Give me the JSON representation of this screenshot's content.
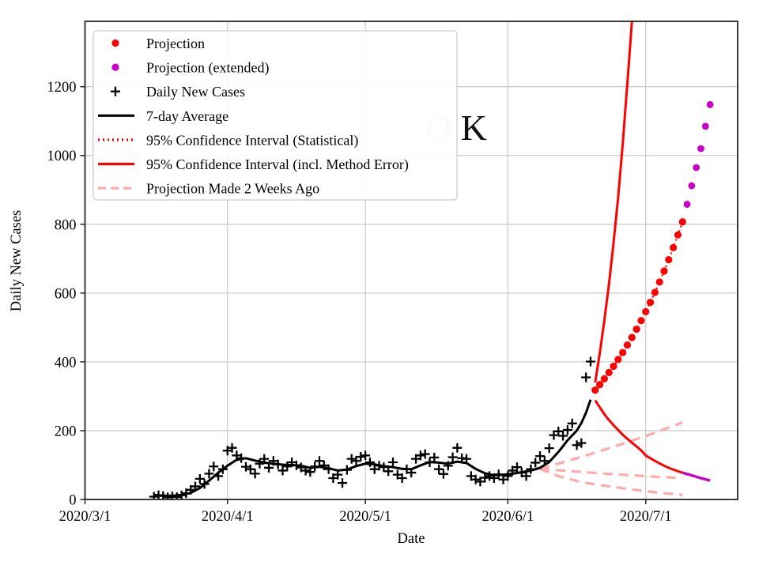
{
  "watermark": {
    "gray_text": "O",
    "black_text": "K"
  },
  "colors": {
    "red": "#ff0000",
    "magenta": "#c800c8",
    "pink": "#ffaaaa",
    "black": "#000000",
    "grid": "#cccccc",
    "spine": "#262626",
    "watermark_gray": "#d4d4d4",
    "watermark_black": "#111111"
  },
  "legend": {
    "items": [
      {
        "label": "Projection",
        "marker": "dot",
        "color": "#ff0000"
      },
      {
        "label": "Projection (extended)",
        "marker": "dot",
        "color": "#c800c8"
      },
      {
        "label": "Daily New Cases",
        "marker": "plus",
        "color": "#000000"
      },
      {
        "label": "7-day Average",
        "marker": "line",
        "color": "#000000"
      },
      {
        "label": "95% Confidence Interval (Statistical)",
        "marker": "dotted",
        "color": "#ff0000"
      },
      {
        "label": "95% Confidence Interval (incl. Method Error)",
        "marker": "line",
        "color": "#ff0000"
      },
      {
        "label": "Projection Made 2 Weeks Ago",
        "marker": "dashed",
        "color": "#ffaaaa"
      }
    ]
  },
  "chart_data": {
    "type": "line",
    "title": "",
    "xlabel": "Date",
    "ylabel": "Daily New Cases",
    "x_ticks": [
      {
        "label": "2020/3/1",
        "date": "3/1"
      },
      {
        "label": "2020/4/1",
        "date": "4/1"
      },
      {
        "label": "2020/5/1",
        "date": "5/1"
      },
      {
        "label": "2020/6/1",
        "date": "6/1"
      },
      {
        "label": "2020/7/1",
        "date": "7/1"
      }
    ],
    "y_ticks": [
      0,
      200,
      400,
      600,
      800,
      1000,
      1200
    ],
    "xlim": [
      "3/1",
      "7/21"
    ],
    "ylim": [
      0,
      1390
    ],
    "grid": true,
    "legend_position": "upper left",
    "series": {
      "daily_new_cases": {
        "label": "Daily New Cases",
        "marker": "plus",
        "color": "#000000",
        "points": [
          [
            "3/16",
            8
          ],
          [
            "3/17",
            12
          ],
          [
            "3/18",
            10
          ],
          [
            "3/19",
            6
          ],
          [
            "3/20",
            9
          ],
          [
            "3/21",
            7
          ],
          [
            "3/22",
            12
          ],
          [
            "3/23",
            18
          ],
          [
            "3/24",
            28
          ],
          [
            "3/25",
            38
          ],
          [
            "3/26",
            60
          ],
          [
            "3/27",
            45
          ],
          [
            "3/28",
            75
          ],
          [
            "3/29",
            96
          ],
          [
            "3/30",
            68
          ],
          [
            "3/31",
            88
          ],
          [
            "4/1",
            142
          ],
          [
            "4/2",
            150
          ],
          [
            "4/3",
            128
          ],
          [
            "4/4",
            120
          ],
          [
            "4/5",
            95
          ],
          [
            "4/6",
            88
          ],
          [
            "4/7",
            75
          ],
          [
            "4/8",
            104
          ],
          [
            "4/9",
            118
          ],
          [
            "4/10",
            92
          ],
          [
            "4/11",
            112
          ],
          [
            "4/12",
            102
          ],
          [
            "4/13",
            84
          ],
          [
            "4/14",
            96
          ],
          [
            "4/15",
            108
          ],
          [
            "4/16",
            99
          ],
          [
            "4/17",
            93
          ],
          [
            "4/18",
            84
          ],
          [
            "4/19",
            80
          ],
          [
            "4/20",
            96
          ],
          [
            "4/21",
            112
          ],
          [
            "4/22",
            99
          ],
          [
            "4/23",
            88
          ],
          [
            "4/24",
            62
          ],
          [
            "4/25",
            72
          ],
          [
            "4/26",
            48
          ],
          [
            "4/27",
            86
          ],
          [
            "4/28",
            118
          ],
          [
            "4/29",
            112
          ],
          [
            "4/30",
            124
          ],
          [
            "5/1",
            128
          ],
          [
            "5/2",
            108
          ],
          [
            "5/3",
            88
          ],
          [
            "5/4",
            98
          ],
          [
            "5/5",
            94
          ],
          [
            "5/6",
            82
          ],
          [
            "5/7",
            108
          ],
          [
            "5/8",
            72
          ],
          [
            "5/9",
            62
          ],
          [
            "5/10",
            88
          ],
          [
            "5/11",
            78
          ],
          [
            "5/12",
            118
          ],
          [
            "5/13",
            128
          ],
          [
            "5/14",
            132
          ],
          [
            "5/15",
            108
          ],
          [
            "5/16",
            122
          ],
          [
            "5/17",
            88
          ],
          [
            "5/18",
            74
          ],
          [
            "5/19",
            98
          ],
          [
            "5/20",
            123
          ],
          [
            "5/21",
            150
          ],
          [
            "5/22",
            120
          ],
          [
            "5/23",
            118
          ],
          [
            "5/24",
            68
          ],
          [
            "5/25",
            58
          ],
          [
            "5/26",
            52
          ],
          [
            "5/27",
            63
          ],
          [
            "5/28",
            68
          ],
          [
            "5/29",
            62
          ],
          [
            "5/30",
            73
          ],
          [
            "5/31",
            58
          ],
          [
            "6/1",
            68
          ],
          [
            "6/2",
            84
          ],
          [
            "6/3",
            94
          ],
          [
            "6/4",
            78
          ],
          [
            "6/5",
            68
          ],
          [
            "6/6",
            88
          ],
          [
            "6/7",
            107
          ],
          [
            "6/8",
            126
          ],
          [
            "6/9",
            112
          ],
          [
            "6/10",
            149
          ],
          [
            "6/11",
            187
          ],
          [
            "6/12",
            198
          ],
          [
            "6/13",
            185
          ],
          [
            "6/14",
            202
          ],
          [
            "6/15",
            221
          ],
          [
            "6/16",
            158
          ],
          [
            "6/17",
            164
          ],
          [
            "6/18",
            355
          ],
          [
            "6/19",
            401
          ]
        ]
      },
      "seven_day_average": {
        "label": "7-day Average",
        "style": "solid",
        "color": "#000000",
        "points": [
          [
            "3/16",
            13
          ],
          [
            "3/18",
            11
          ],
          [
            "3/20",
            11
          ],
          [
            "3/22",
            13
          ],
          [
            "3/24",
            19
          ],
          [
            "3/26",
            33
          ],
          [
            "3/28",
            55
          ],
          [
            "3/30",
            78
          ],
          [
            "4/1",
            98
          ],
          [
            "4/3",
            115
          ],
          [
            "4/5",
            120
          ],
          [
            "4/7",
            113
          ],
          [
            "4/9",
            107
          ],
          [
            "4/11",
            104
          ],
          [
            "4/13",
            101
          ],
          [
            "4/15",
            100
          ],
          [
            "4/17",
            98
          ],
          [
            "4/19",
            92
          ],
          [
            "4/21",
            95
          ],
          [
            "4/23",
            91
          ],
          [
            "4/25",
            84
          ],
          [
            "4/27",
            87
          ],
          [
            "4/29",
            97
          ],
          [
            "5/1",
            104
          ],
          [
            "5/3",
            102
          ],
          [
            "5/5",
            97
          ],
          [
            "5/7",
            94
          ],
          [
            "5/9",
            89
          ],
          [
            "5/11",
            88
          ],
          [
            "5/13",
            99
          ],
          [
            "5/15",
            109
          ],
          [
            "5/17",
            107
          ],
          [
            "5/19",
            104
          ],
          [
            "5/21",
            110
          ],
          [
            "5/23",
            106
          ],
          [
            "5/25",
            89
          ],
          [
            "5/27",
            76
          ],
          [
            "5/29",
            70
          ],
          [
            "5/31",
            72
          ],
          [
            "6/2",
            75
          ],
          [
            "6/4",
            79
          ],
          [
            "6/6",
            84
          ],
          [
            "6/8",
            92
          ],
          [
            "6/10",
            109
          ],
          [
            "6/12",
            138
          ],
          [
            "6/14",
            172
          ],
          [
            "6/16",
            200
          ],
          [
            "6/17",
            222
          ],
          [
            "6/18",
            252
          ],
          [
            "6/19",
            290
          ]
        ]
      },
      "projection": {
        "label": "Projection",
        "marker": "dot",
        "color": "#ff0000",
        "points": [
          [
            "6/20",
            318
          ],
          [
            "6/21",
            334
          ],
          [
            "6/22",
            351
          ],
          [
            "6/23",
            369
          ],
          [
            "6/24",
            387
          ],
          [
            "6/25",
            407
          ],
          [
            "6/26",
            427
          ],
          [
            "6/27",
            449
          ],
          [
            "6/28",
            471
          ],
          [
            "6/29",
            495
          ],
          [
            "6/30",
            520
          ],
          [
            "7/1",
            546
          ],
          [
            "7/2",
            573
          ],
          [
            "7/3",
            602
          ],
          [
            "7/4",
            632
          ],
          [
            "7/5",
            664
          ],
          [
            "7/6",
            697
          ],
          [
            "7/7",
            732
          ],
          [
            "7/8",
            769
          ],
          [
            "7/9",
            807
          ]
        ]
      },
      "projection_extended": {
        "label": "Projection (extended)",
        "marker": "dot",
        "color": "#c800c8",
        "points": [
          [
            "7/10",
            858
          ],
          [
            "7/11",
            912
          ],
          [
            "7/12",
            965
          ],
          [
            "7/13",
            1020
          ],
          [
            "7/14",
            1085
          ],
          [
            "7/15",
            1148
          ]
        ]
      },
      "ci_statistical": {
        "label": "95% Confidence Interval (Statistical)",
        "style": "dotted",
        "color": "#ff0000",
        "note": "coincident with projection curve, hidden behind dots",
        "points": [
          [
            "6/20",
            318
          ],
          [
            "6/21",
            334
          ],
          [
            "6/22",
            351
          ],
          [
            "6/23",
            369
          ],
          [
            "6/24",
            387
          ],
          [
            "6/25",
            407
          ],
          [
            "6/26",
            427
          ],
          [
            "6/27",
            449
          ],
          [
            "6/28",
            471
          ],
          [
            "6/29",
            495
          ],
          [
            "6/30",
            520
          ],
          [
            "7/1",
            546
          ],
          [
            "7/2",
            573
          ],
          [
            "7/3",
            602
          ],
          [
            "7/4",
            632
          ],
          [
            "7/5",
            664
          ],
          [
            "7/6",
            697
          ],
          [
            "7/7",
            732
          ],
          [
            "7/8",
            769
          ],
          [
            "7/9",
            807
          ]
        ]
      },
      "ci_method_upper": {
        "label": "95% Confidence Interval (incl. Method Error) - upper",
        "style": "solid",
        "color": "#ff0000",
        "points": [
          [
            "6/20",
            340
          ],
          [
            "6/21",
            425
          ],
          [
            "6/22",
            520
          ],
          [
            "6/23",
            625
          ],
          [
            "6/24",
            745
          ],
          [
            "6/25",
            880
          ],
          [
            "6/26",
            1035
          ],
          [
            "6/27",
            1210
          ],
          [
            "6/28",
            1390
          ]
        ]
      },
      "ci_method_lower": {
        "label": "95% Confidence Interval (incl. Method Error) - lower",
        "style": "solid",
        "color": "#ff0000",
        "points": [
          [
            "6/20",
            288
          ],
          [
            "6/21",
            268
          ],
          [
            "6/22",
            248
          ],
          [
            "6/23",
            231
          ],
          [
            "6/24",
            216
          ],
          [
            "6/25",
            202
          ],
          [
            "6/26",
            188
          ],
          [
            "6/27",
            176
          ],
          [
            "6/28",
            165
          ],
          [
            "6/29",
            154
          ],
          [
            "6/30",
            143
          ],
          [
            "7/1",
            128
          ],
          [
            "7/2",
            120
          ],
          [
            "7/3",
            112
          ],
          [
            "7/4",
            105
          ],
          [
            "7/5",
            98
          ],
          [
            "7/6",
            92
          ],
          [
            "7/7",
            87
          ],
          [
            "7/8",
            82
          ],
          [
            "7/9",
            78
          ]
        ]
      },
      "ci_method_lower_extended": {
        "label": "lower bound (extended)",
        "style": "solid",
        "color": "#c800c8",
        "points": [
          [
            "7/9",
            78
          ],
          [
            "7/11",
            70
          ],
          [
            "7/13",
            62
          ],
          [
            "7/15",
            55
          ]
        ]
      },
      "projection_2wk_ago_upper": {
        "label": "Projection Made 2 Weeks Ago - upper",
        "style": "dashed",
        "color": "#ffaaaa",
        "points": [
          [
            "6/8",
            90
          ],
          [
            "6/12",
            104
          ],
          [
            "6/16",
            120
          ],
          [
            "6/20",
            136
          ],
          [
            "6/24",
            153
          ],
          [
            "6/28",
            171
          ],
          [
            "7/2",
            189
          ],
          [
            "7/5",
            204
          ],
          [
            "7/9",
            224
          ]
        ]
      },
      "projection_2wk_ago_mid": {
        "label": "Projection Made 2 Weeks Ago - central",
        "style": "dashed",
        "color": "#ffaaaa",
        "points": [
          [
            "6/8",
            89
          ],
          [
            "6/14",
            83
          ],
          [
            "6/20",
            77
          ],
          [
            "6/26",
            72
          ],
          [
            "7/2",
            67
          ],
          [
            "7/9",
            62
          ]
        ]
      },
      "projection_2wk_ago_lower": {
        "label": "Projection Made 2 Weeks Ago - lower",
        "style": "dashed",
        "color": "#ffaaaa",
        "points": [
          [
            "6/8",
            89
          ],
          [
            "6/12",
            68
          ],
          [
            "6/17",
            50
          ],
          [
            "6/22",
            40
          ],
          [
            "6/28",
            29
          ],
          [
            "7/3",
            21
          ],
          [
            "7/9",
            13
          ]
        ]
      }
    }
  }
}
